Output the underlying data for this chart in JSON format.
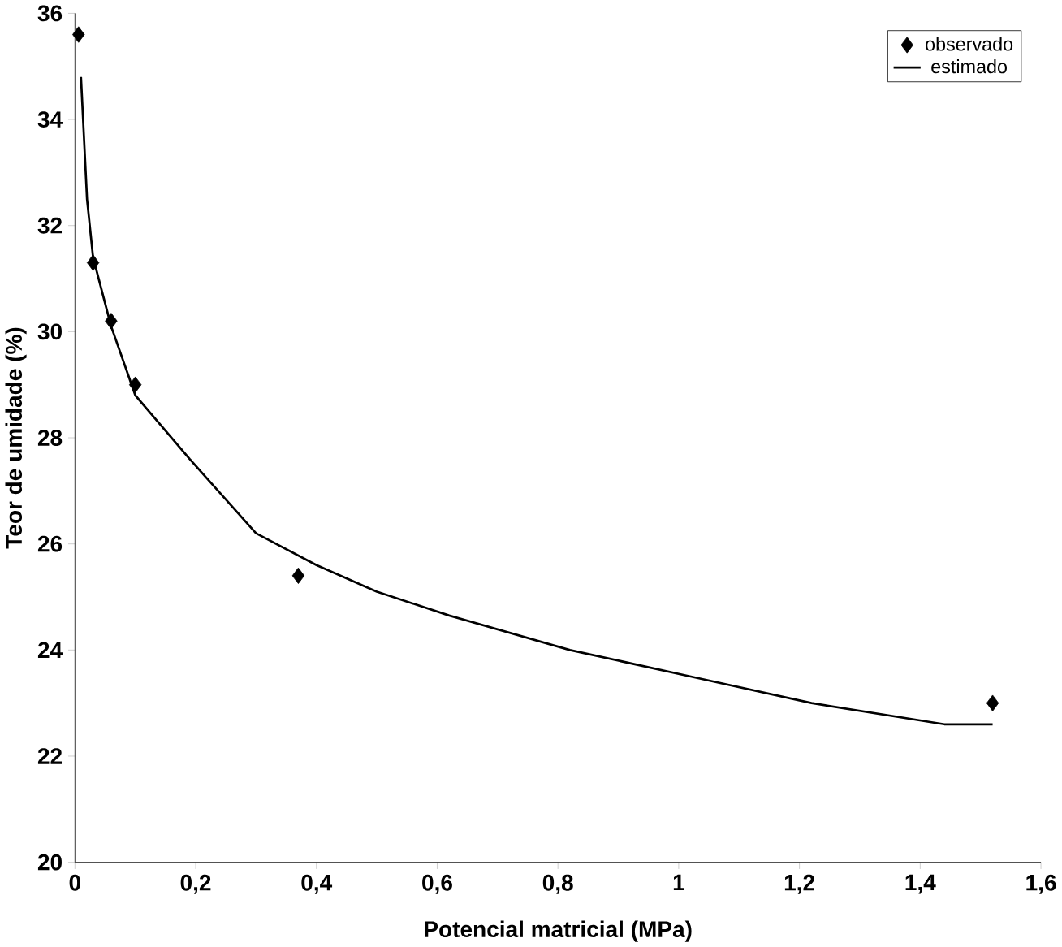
{
  "chart_data": {
    "type": "scatter",
    "xlabel": "Potencial matricial (MPa)",
    "ylabel": "Teor de umidade (%)",
    "xlim": [
      0,
      1.6
    ],
    "ylim": [
      20,
      36
    ],
    "xticks": [
      0,
      {
        "value": 0.2,
        "label": "0,2"
      },
      {
        "value": 0.4,
        "label": "0,4"
      },
      {
        "value": 0.6,
        "label": "0,6"
      },
      {
        "value": 0.8,
        "label": "0,8"
      },
      1,
      {
        "value": 1.2,
        "label": "1,2"
      },
      {
        "value": 1.4,
        "label": "1,4"
      },
      {
        "value": 1.6,
        "label": "1,6"
      }
    ],
    "yticks": [
      20,
      22,
      24,
      26,
      28,
      30,
      32,
      34,
      36
    ],
    "grid": false,
    "legend": "top right",
    "series": [
      {
        "name": "observado",
        "marker": "diamond",
        "color": "#000000",
        "x": [
          0.006,
          0.03,
          0.06,
          0.1,
          0.37,
          1.52
        ],
        "values": [
          35.6,
          31.3,
          30.2,
          29.0,
          25.4,
          23.0
        ]
      },
      {
        "name": "estimado",
        "type": "line",
        "marker": "none",
        "color": "#000000",
        "x": [
          0.01,
          0.02,
          0.03,
          0.06,
          0.1,
          0.19,
          0.3,
          0.4,
          0.5,
          0.62,
          0.82,
          1.02,
          1.22,
          1.44,
          1.52
        ],
        "values": [
          34.8,
          32.5,
          31.4,
          30.1,
          28.8,
          27.6,
          26.2,
          25.6,
          25.1,
          24.65,
          24.0,
          23.5,
          23.0,
          22.6,
          22.6
        ]
      }
    ]
  }
}
